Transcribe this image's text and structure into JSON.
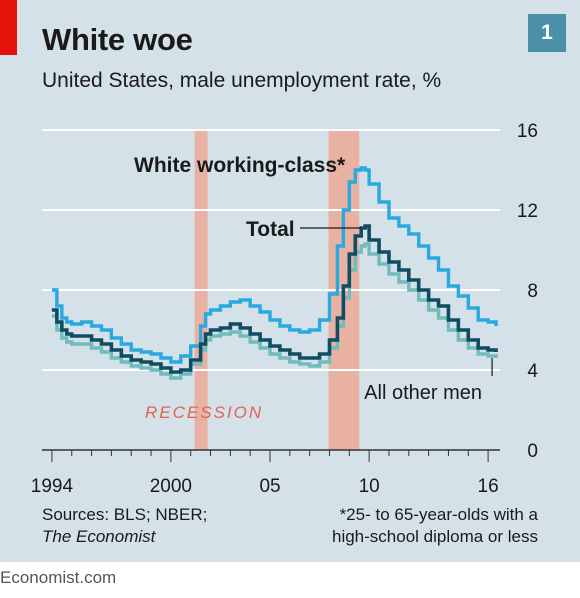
{
  "header": {
    "title": "White woe",
    "subtitle": "United States, male unemployment rate, %",
    "chart_number": "1"
  },
  "footer": {
    "sources_line1": "Sources: BLS; NBER;",
    "sources_line2": "The Economist",
    "footnote_line1": "*25- to 65-year-olds with a",
    "footnote_line2": "high-school diploma or less",
    "site_credit": "Economist.com"
  },
  "colors": {
    "white_working_class": "#29a9e0",
    "total": "#0f4d63",
    "all_other_men": "#6fbcbb",
    "recession": "#e8b1a1",
    "recession_label": "#e0644f",
    "gridline": "#ffffff",
    "zero_line": "#333333"
  },
  "chart_data": {
    "type": "line",
    "title": "White woe",
    "subtitle": "United States, male unemployment rate, %",
    "xlabel": "",
    "ylabel": "",
    "xlim": [
      1993.5,
      2016.6
    ],
    "ylim": [
      0,
      16
    ],
    "y_ticks": [
      0,
      4,
      8,
      12,
      16
    ],
    "x_ticks": [
      {
        "value": 1994,
        "label": "1994"
      },
      {
        "value": 2000,
        "label": "2000"
      },
      {
        "value": 2005,
        "label": "05"
      },
      {
        "value": 2010,
        "label": "10"
      },
      {
        "value": 2016,
        "label": "16"
      }
    ],
    "grid": true,
    "recession_label": "RECESSION",
    "recessions": [
      {
        "start": 2001.2,
        "end": 2001.85
      },
      {
        "start": 2007.95,
        "end": 2009.5
      }
    ],
    "series": [
      {
        "name": "White working-class*",
        "key": "white_working_class",
        "x": [
          1994,
          1994.25,
          1994.5,
          1994.75,
          1995,
          1995.5,
          1996,
          1996.5,
          1997,
          1997.5,
          1998,
          1998.5,
          1999,
          1999.5,
          2000,
          2000.5,
          2001,
          2001.5,
          2001.75,
          2002,
          2002.5,
          2003,
          2003.5,
          2004,
          2004.5,
          2005,
          2005.5,
          2006,
          2006.5,
          2007,
          2007.5,
          2008,
          2008.4,
          2008.7,
          2009,
          2009.3,
          2009.6,
          2009.8,
          2010,
          2010.5,
          2011,
          2011.5,
          2012,
          2012.5,
          2013,
          2013.5,
          2014,
          2014.5,
          2015,
          2015.5,
          2016,
          2016.4
        ],
        "values": [
          8.0,
          7.2,
          6.6,
          6.4,
          6.3,
          6.4,
          6.2,
          6.0,
          5.6,
          5.3,
          5.0,
          4.9,
          4.8,
          4.6,
          4.4,
          4.7,
          5.2,
          6.2,
          6.8,
          7.0,
          7.2,
          7.4,
          7.5,
          7.2,
          6.9,
          6.5,
          6.2,
          6.0,
          5.9,
          6.0,
          6.5,
          7.8,
          10.2,
          12.0,
          13.4,
          14.0,
          14.1,
          14.0,
          13.3,
          12.4,
          11.6,
          11.2,
          10.8,
          10.2,
          9.6,
          9.0,
          8.2,
          7.7,
          7.1,
          6.5,
          6.4,
          6.2
        ]
      },
      {
        "name": "Total",
        "key": "total",
        "x": [
          1994,
          1994.25,
          1994.5,
          1994.75,
          1995,
          1995.5,
          1996,
          1996.5,
          1997,
          1997.5,
          1998,
          1998.5,
          1999,
          1999.5,
          2000,
          2000.5,
          2001,
          2001.5,
          2001.75,
          2002,
          2002.5,
          2003,
          2003.5,
          2004,
          2004.5,
          2005,
          2005.5,
          2006,
          2006.5,
          2007,
          2007.5,
          2008,
          2008.4,
          2008.7,
          2009,
          2009.3,
          2009.6,
          2009.8,
          2010,
          2010.5,
          2011,
          2011.5,
          2012,
          2012.5,
          2013,
          2013.5,
          2014,
          2014.5,
          2015,
          2015.5,
          2016,
          2016.4
        ],
        "values": [
          7.0,
          6.4,
          6.0,
          5.8,
          5.7,
          5.7,
          5.5,
          5.3,
          5.0,
          4.7,
          4.5,
          4.4,
          4.3,
          4.1,
          3.9,
          4.0,
          4.5,
          5.3,
          5.8,
          6.0,
          6.1,
          6.3,
          6.1,
          5.8,
          5.5,
          5.2,
          5.0,
          4.8,
          4.6,
          4.6,
          4.8,
          5.5,
          6.6,
          8.2,
          9.8,
          10.7,
          11.1,
          11.2,
          10.5,
          9.9,
          9.4,
          9.0,
          8.5,
          8.0,
          7.5,
          7.2,
          6.5,
          6.0,
          5.5,
          5.1,
          5.0,
          4.9
        ]
      },
      {
        "name": "All other men",
        "key": "all_other_men",
        "x": [
          1994,
          1994.25,
          1994.5,
          1994.75,
          1995,
          1995.5,
          1996,
          1996.5,
          1997,
          1997.5,
          1998,
          1998.5,
          1999,
          1999.5,
          2000,
          2000.5,
          2001,
          2001.5,
          2001.75,
          2002,
          2002.5,
          2003,
          2003.5,
          2004,
          2004.5,
          2005,
          2005.5,
          2006,
          2006.5,
          2007,
          2007.5,
          2008,
          2008.4,
          2008.7,
          2009,
          2009.3,
          2009.6,
          2009.8,
          2010,
          2010.5,
          2011,
          2011.5,
          2012,
          2012.5,
          2013,
          2013.5,
          2014,
          2014.5,
          2015,
          2015.5,
          2016,
          2016.4
        ],
        "values": [
          6.7,
          6.0,
          5.6,
          5.4,
          5.3,
          5.3,
          5.1,
          4.9,
          4.6,
          4.4,
          4.2,
          4.1,
          4.0,
          3.8,
          3.6,
          3.8,
          4.3,
          5.0,
          5.5,
          5.7,
          5.8,
          5.9,
          5.7,
          5.4,
          5.1,
          4.8,
          4.6,
          4.4,
          4.3,
          4.2,
          4.4,
          5.1,
          6.2,
          7.6,
          9.0,
          9.9,
          10.2,
          10.3,
          9.8,
          9.3,
          8.8,
          8.4,
          8.0,
          7.5,
          7.0,
          6.6,
          6.0,
          5.5,
          5.1,
          4.8,
          4.7,
          4.6
        ]
      }
    ],
    "annotations": [
      {
        "text": "White working-class*",
        "series": "white_working_class"
      },
      {
        "text": "Total",
        "series": "total",
        "pointer_x": 2009.6
      },
      {
        "text": "All other men",
        "series": "all_other_men",
        "pointer_x": 2016.2
      }
    ]
  }
}
